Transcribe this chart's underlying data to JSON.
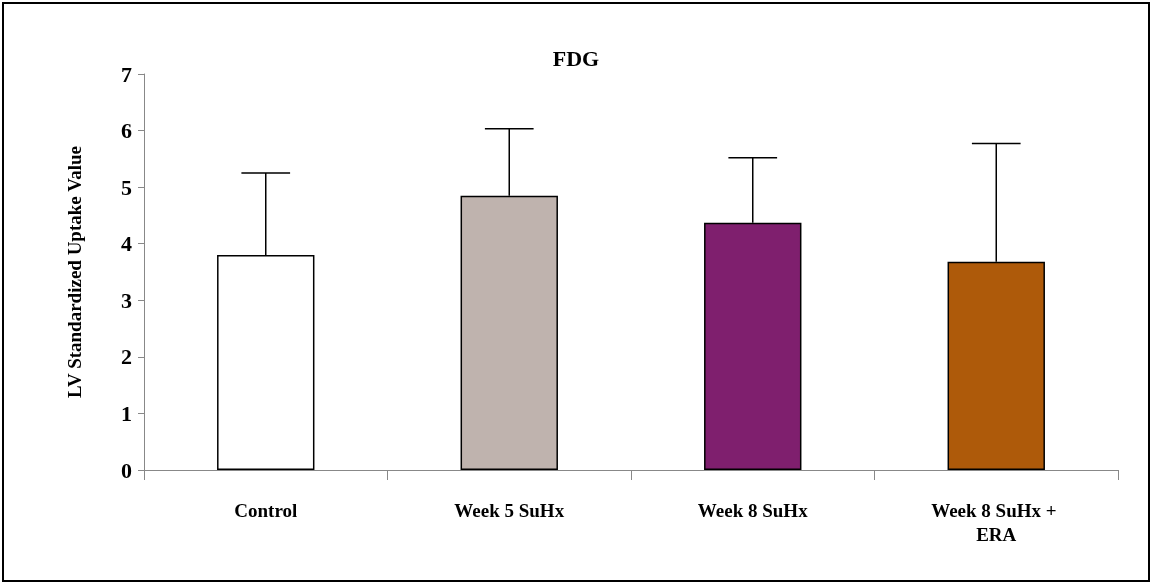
{
  "chart_data": {
    "type": "bar",
    "title": "FDG",
    "ylabel": "LV Standardized Uptake Value",
    "categories": [
      "Control",
      "Week 5 SuHx",
      "Week 8 SuHx",
      "Week 8 SuHx + ERA"
    ],
    "values": [
      3.8,
      4.85,
      4.37,
      3.68
    ],
    "colors": [
      "#ffffff",
      "#bfb3ae",
      "#7f1f6e",
      "#ae5a0a"
    ],
    "errors": [
      [
        3.8,
        5.25
      ],
      [
        4.85,
        6.03
      ],
      [
        4.37,
        5.52
      ],
      [
        3.68,
        5.77
      ]
    ],
    "ylim": [
      0,
      7
    ],
    "yticks": [
      0,
      1,
      2,
      3,
      4,
      5,
      6,
      7
    ],
    "grid": false
  }
}
